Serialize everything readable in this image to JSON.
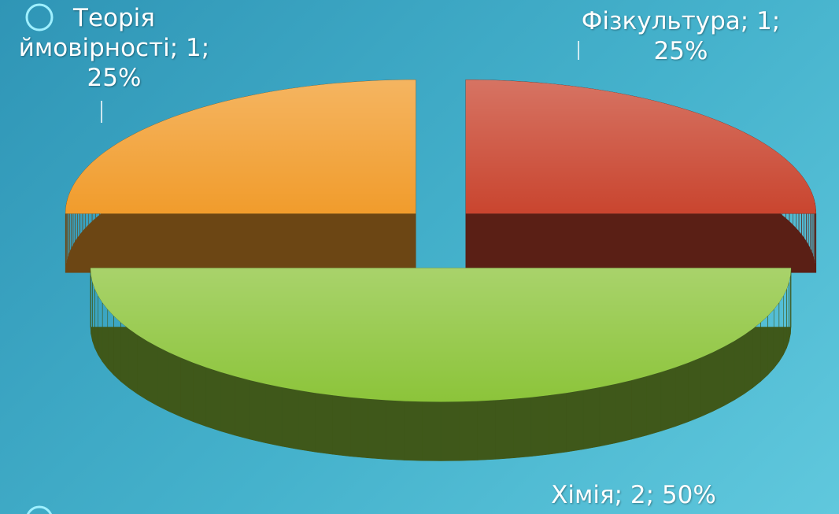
{
  "chart_data": {
    "type": "pie",
    "three_d": true,
    "categories": [
      "Фізкультура",
      "Хімія",
      "Теорія ймовірності"
    ],
    "values": [
      1,
      2,
      1
    ],
    "value_labels": [
      "Фізкультура; 1; 25%",
      "Хімія; 2; 50%",
      "Теорія ймовірності; 1; 25%"
    ],
    "colors": [
      "#c9452f",
      "#8cc43a",
      "#f19c2c"
    ]
  }
}
